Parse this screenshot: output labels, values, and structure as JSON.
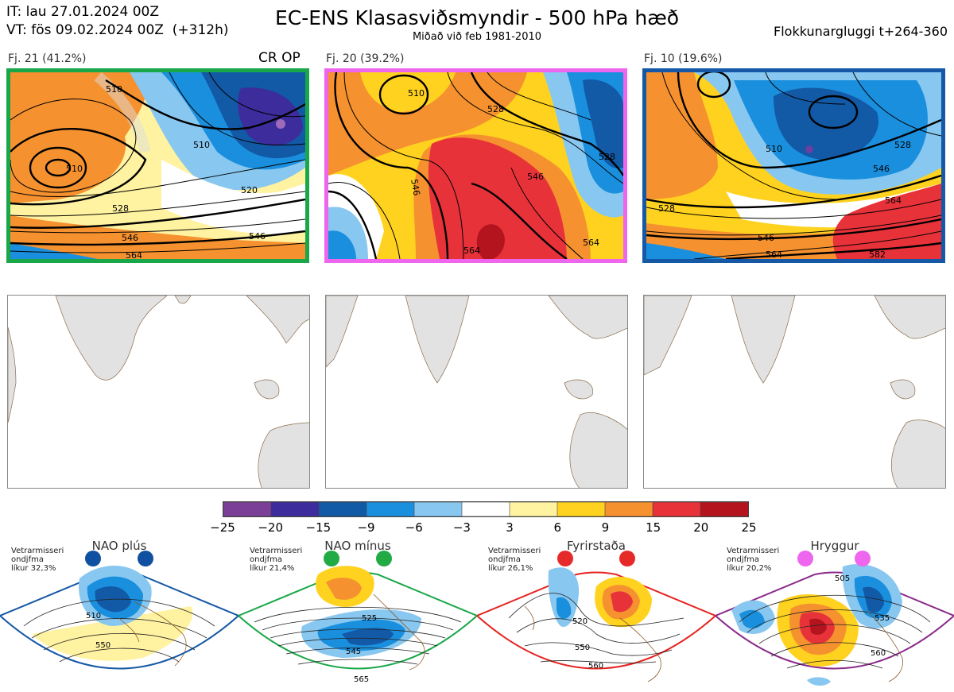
{
  "header": {
    "it_line": "IT: lau 27.01.2024 00Z",
    "vt_line": "VT: fös 09.02.2024 00Z  (+312h)",
    "title": "EC-ENS Klasasviðsmyndir - 500 hPa hæð",
    "subtitle": "Miðað við feb 1981-2010",
    "window": "Flokkunargluggi t+264-360"
  },
  "clusters": [
    {
      "label": "Fj. 21 (41.2%)",
      "badge": "CR OP",
      "border_color": "#1aa74a",
      "contours": [
        "510",
        "510",
        "528",
        "546",
        "564",
        "520",
        "546",
        "510"
      ]
    },
    {
      "label": "Fj. 20 (39.2%)",
      "badge": "",
      "border_color": "#ee66ee",
      "contours": [
        "510",
        "528",
        "546",
        "546",
        "528",
        "564",
        "564"
      ]
    },
    {
      "label": "Fj. 10 (19.6%)",
      "badge": "",
      "border_color": "#1558a6",
      "contours": [
        "510",
        "528",
        "546",
        "564",
        "528",
        "546",
        "564",
        "582"
      ]
    }
  ],
  "colorbar": {
    "ticks": [
      "−25",
      "−20",
      "−15",
      "−9",
      "−6",
      "−3",
      "3",
      "6",
      "9",
      "15",
      "20",
      "25"
    ],
    "colors": [
      "#7b3f98",
      "#3d2c9c",
      "#1259a6",
      "#1a8fde",
      "#88c7f0",
      "#ffffff",
      "#fff2a0",
      "#ffd21f",
      "#f5912f",
      "#e8323a",
      "#b3141e"
    ]
  },
  "regimes": [
    {
      "name": "NAO plús",
      "info": "Vetrarmisseri\nondjfma\nlíkur 32,3%",
      "color": "#1558a6",
      "dot_color": "#1050a0",
      "contours": [
        "510",
        "550"
      ]
    },
    {
      "name": "NAO mínus",
      "info": "Vetrarmisseri\nondjfma\nlíkur 21,4%",
      "color": "#1aa74a",
      "dot_color": "#22aa44",
      "contours": [
        "525",
        "545",
        "565"
      ]
    },
    {
      "name": "Fyrirstaða",
      "info": "Vetrarmisseri\nondjfma\nlíkur 26,1%",
      "color": "#e52420",
      "dot_color": "#e62a2a",
      "contours": [
        "520",
        "550",
        "560"
      ]
    },
    {
      "name": "Hryggur",
      "info": "Vetrarmisseri\nondjfma\nlíkur 20,2%",
      "color": "#8a2a8a",
      "dot_color": "#ee66ee",
      "contours": [
        "505",
        "535",
        "560"
      ]
    }
  ]
}
